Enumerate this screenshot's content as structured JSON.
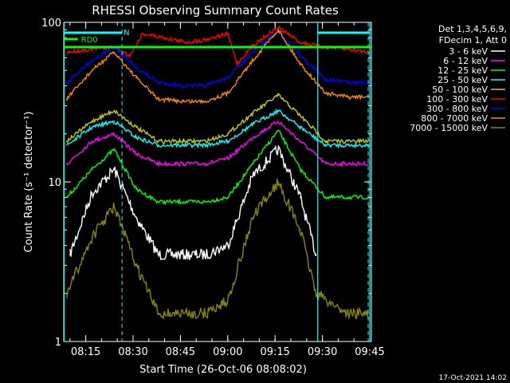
{
  "chart_data": {
    "type": "line",
    "title": "RHESSI Observing Summary Count Rates",
    "xlabel": "Start Time (26-Oct-06 08:08:02)",
    "ylabel": "Count Rate (s⁻¹ detector⁻¹)",
    "yscale": "log",
    "ylim": [
      1,
      100
    ],
    "xlim": [
      "08:08:02",
      "09:45:30"
    ],
    "x_ticks": [
      "08:15",
      "08:30",
      "08:45",
      "09:00",
      "09:15",
      "09:30",
      "09:45"
    ],
    "y_tick_labels": [
      "1",
      "10",
      "100"
    ],
    "grid": false,
    "legend_position": "right",
    "legend_header": [
      "Det 1,3,4,5,6,9,",
      "FDecim 1, Att 0"
    ],
    "series": [
      {
        "name": "3 - 6 keV",
        "color": "#ffffff",
        "x": [
          "08:10",
          "08:17",
          "08:24",
          "08:31",
          "08:38",
          "08:46",
          "08:53",
          "09:00",
          "09:08",
          "09:16",
          "09:23",
          "09:28"
        ],
        "values": [
          3.5,
          8.5,
          12,
          6,
          3.5,
          3.5,
          3.5,
          4,
          11,
          16,
          8,
          3.5
        ]
      },
      {
        "name": "6 - 12 keV",
        "color": "#ff00ff",
        "x": [
          "08:09",
          "08:17",
          "08:24",
          "08:31",
          "08:38",
          "08:46",
          "08:53",
          "09:00",
          "09:08",
          "09:16",
          "09:23",
          "09:31",
          "09:38",
          "09:45"
        ],
        "values": [
          13,
          18,
          20,
          15,
          13,
          13,
          13,
          14,
          19,
          24,
          18,
          13,
          13,
          13
        ]
      },
      {
        "name": "12 - 25 keV",
        "color": "#00ff00",
        "x": [
          "08:09",
          "08:17",
          "08:24",
          "08:31",
          "08:38",
          "08:46",
          "08:53",
          "09:00",
          "09:08",
          "09:16",
          "09:23",
          "09:31",
          "09:38",
          "09:45"
        ],
        "values": [
          8,
          12,
          16,
          9,
          7.5,
          7.5,
          7.5,
          8,
          13,
          21,
          12,
          8,
          8,
          8
        ]
      },
      {
        "name": "25 - 50 keV",
        "color": "#00ffff",
        "x": [
          "08:09",
          "08:17",
          "08:24",
          "08:31",
          "08:38",
          "08:46",
          "08:53",
          "09:00",
          "09:08",
          "09:16",
          "09:23",
          "09:31",
          "09:38",
          "09:45"
        ],
        "values": [
          17,
          22,
          24,
          19,
          17,
          17,
          17,
          18,
          23,
          28,
          22,
          17,
          17,
          17
        ]
      },
      {
        "name": "50 - 100 keV",
        "color": "#cccc00",
        "x": [
          "08:09",
          "08:17",
          "08:24",
          "08:31",
          "08:38",
          "08:46",
          "08:53",
          "09:00",
          "09:08",
          "09:16",
          "09:23",
          "09:31",
          "09:38",
          "09:45"
        ],
        "values": [
          18,
          24,
          28,
          22,
          18,
          18,
          18,
          20,
          27,
          35,
          26,
          18,
          18,
          18
        ]
      },
      {
        "name": "100 - 300 keV",
        "color": "#ff0000",
        "x": [
          "08:09",
          "08:17",
          "08:24",
          "08:29",
          "08:33",
          "08:40",
          "08:47",
          "08:53",
          "09:00",
          "09:03",
          "09:08",
          "09:16",
          "09:23",
          "09:30",
          "09:38",
          "09:45"
        ],
        "values": [
          65,
          68,
          70,
          62,
          85,
          80,
          75,
          78,
          85,
          55,
          72,
          93,
          75,
          70,
          68,
          65
        ]
      },
      {
        "name": "300 - 800 keV",
        "color": "#0000ff",
        "x": [
          "08:09",
          "08:17",
          "08:24",
          "08:31",
          "08:38",
          "08:46",
          "08:53",
          "09:00",
          "09:08",
          "09:16",
          "09:23",
          "09:31",
          "09:38",
          "09:45"
        ],
        "values": [
          42,
          58,
          70,
          52,
          42,
          40,
          40,
          45,
          65,
          88,
          62,
          44,
          42,
          42
        ]
      },
      {
        "name": "800 - 7000 keV",
        "color": "#ff8800",
        "x": [
          "08:09",
          "08:17",
          "08:24",
          "08:31",
          "08:38",
          "08:46",
          "08:53",
          "09:00",
          "09:08",
          "09:16",
          "09:23",
          "09:31",
          "09:38",
          "09:45"
        ],
        "values": [
          33,
          50,
          65,
          45,
          33,
          32,
          32,
          36,
          58,
          90,
          55,
          36,
          34,
          34
        ]
      },
      {
        "name": "7000 - 15000 keV",
        "color": "#888800",
        "x": [
          "08:09",
          "08:17",
          "08:24",
          "08:31",
          "08:38",
          "08:46",
          "08:53",
          "09:00",
          "09:08",
          "09:16",
          "09:23",
          "09:28",
          "09:38",
          "09:45"
        ],
        "values": [
          2,
          4.5,
          7,
          3,
          1.5,
          1.5,
          1.5,
          1.8,
          6,
          10,
          5,
          2,
          1.5,
          1.5
        ]
      }
    ],
    "annotations": [
      {
        "text": "RD0",
        "color": "#00ff00"
      },
      {
        "text": "N",
        "color": "#00ffff"
      }
    ],
    "timestamp": "17-Oct-2021 14:02"
  }
}
